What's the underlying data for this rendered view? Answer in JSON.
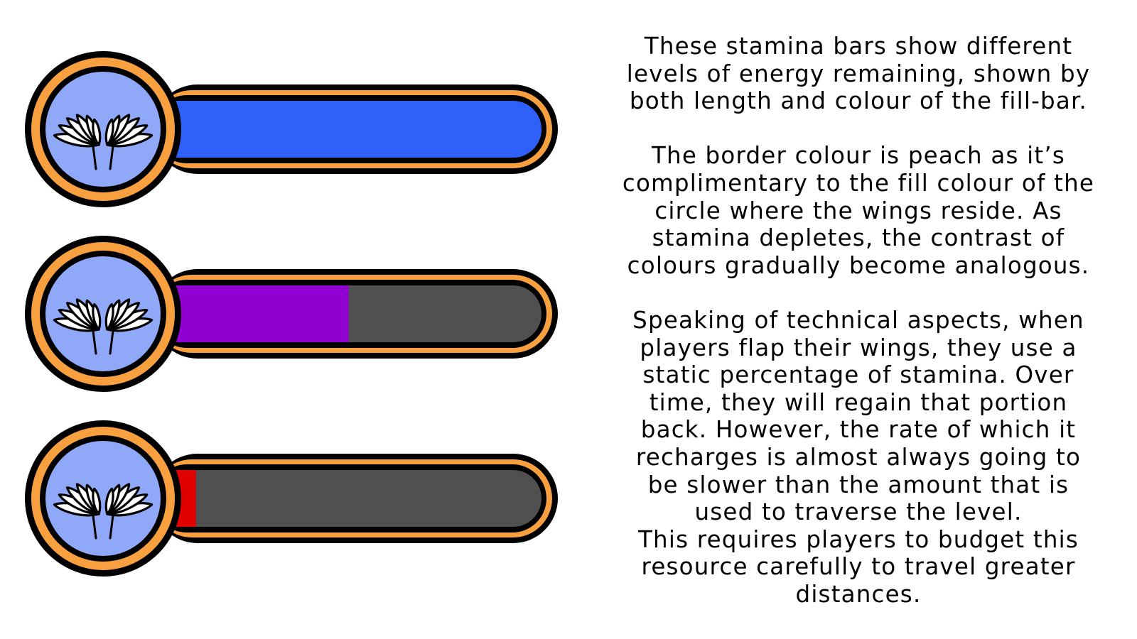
{
  "colors": {
    "outline": "#000000",
    "border_peach": "#F8A040",
    "circle_fill": "#8FA8F8",
    "empty_track": "#505050",
    "wing_fill": "#FFFFFF"
  },
  "icons": {
    "emblem": "wings-icon"
  },
  "stamina_bars": [
    {
      "level": 1.0,
      "fill_color": "#3060FA",
      "state": "full"
    },
    {
      "level": 0.47,
      "fill_color": "#9000D0",
      "state": "half"
    },
    {
      "level": 0.05,
      "fill_color": "#E00000",
      "state": "low"
    }
  ],
  "description": {
    "paragraphs": [
      {
        "lines": [
          "These stamina bars show different",
          "levels of energy remaining, shown by",
          "both length and colour of the fill-bar."
        ]
      },
      {
        "lines": [
          "The border colour is peach as it’s",
          "complimentary to the fill colour of the",
          "circle where the wings reside. As",
          "stamina depletes, the contrast of",
          "colours gradually become analogous."
        ]
      },
      {
        "lines": [
          "Speaking of technical aspects, when",
          "players flap their wings, they use a",
          "static percentage of stamina. Over",
          "time, they will regain that portion",
          "back. However, the rate of which it",
          "recharges is almost always going to",
          "be slower than the amount that is",
          "used to traverse the level.",
          "This requires players to budget this",
          "resource carefully to travel greater",
          "distances."
        ]
      }
    ]
  }
}
